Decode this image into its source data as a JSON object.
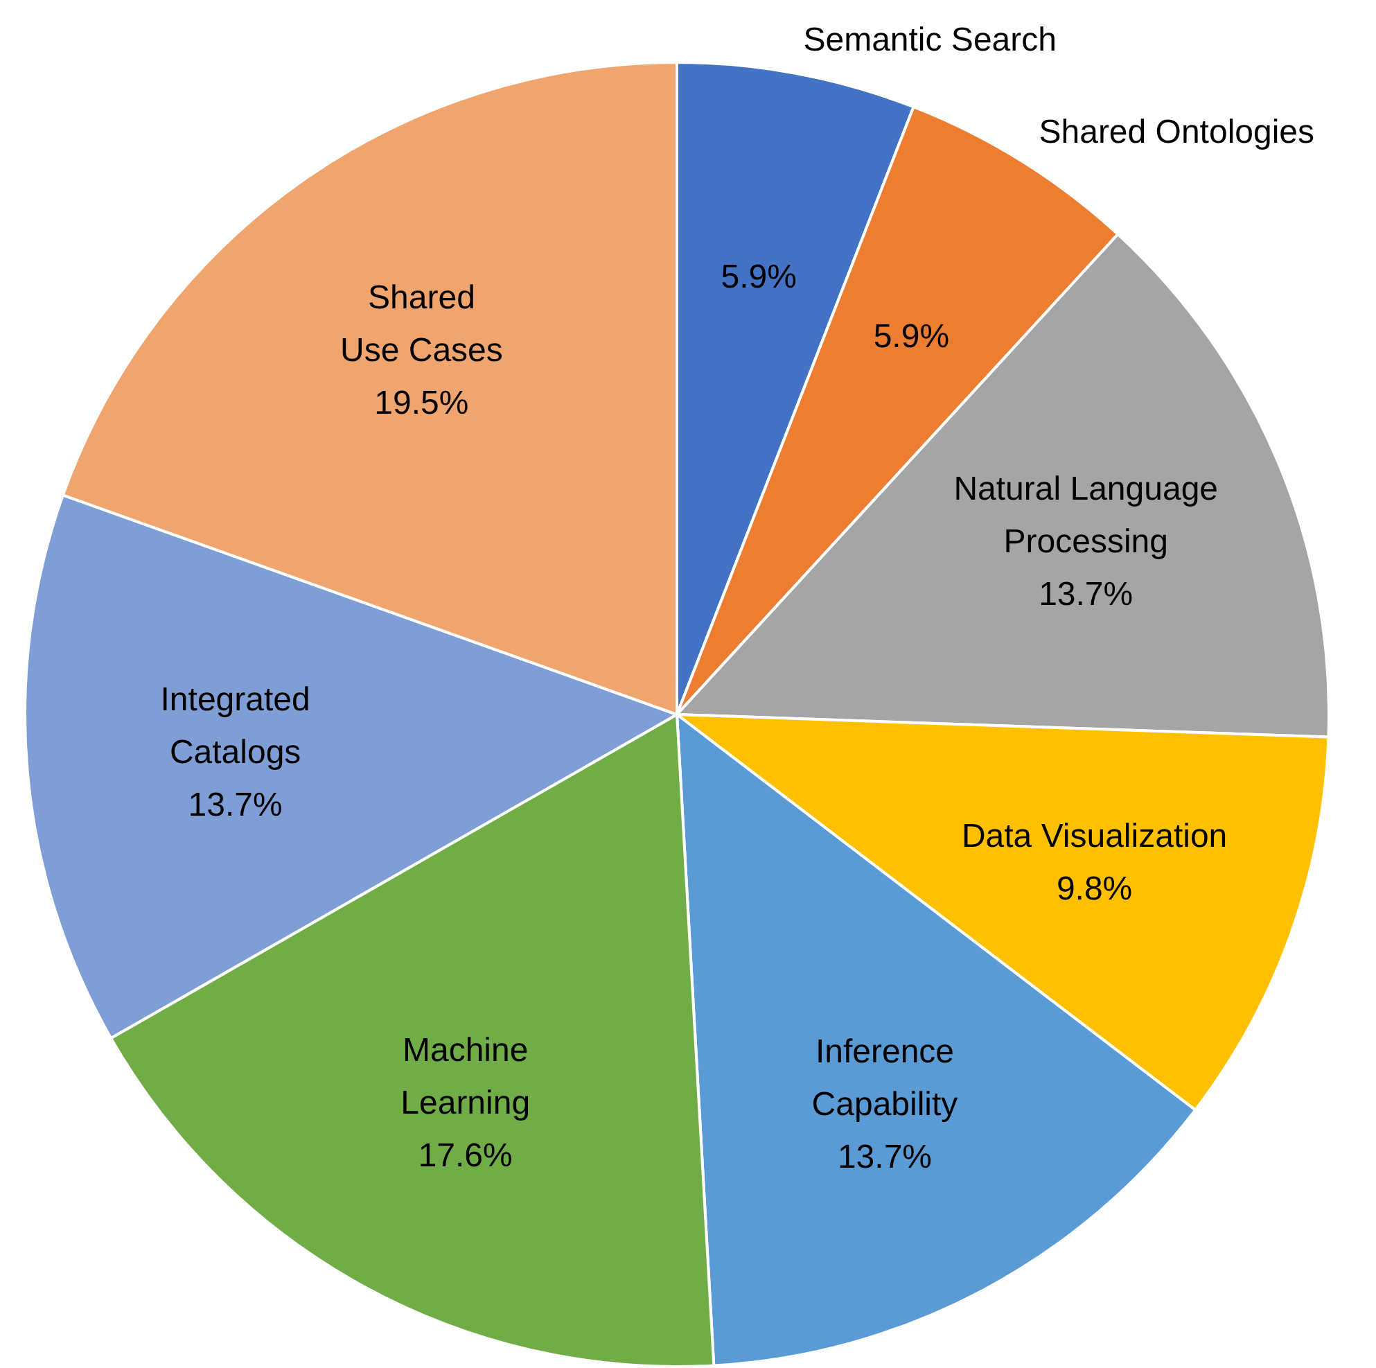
{
  "chart_data": {
    "type": "pie",
    "categories": [
      "Semantic Search",
      "Shared Ontologies",
      "Natural Language\nProcessing",
      "Data Visualization",
      "Inference\nCapability",
      "Machine\nLearning",
      "Integrated\nCatalogs",
      "Shared\nUse Cases"
    ],
    "values": [
      5.9,
      5.9,
      13.7,
      9.8,
      13.7,
      17.6,
      13.7,
      19.5
    ],
    "colors": [
      "#4472c4",
      "#ed7d31",
      "#a5a5a5",
      "#ffc000",
      "#5b9bd5",
      "#70ad47",
      "#7f9ed6",
      "#f0a46e"
    ],
    "value_labels": [
      "5.9%",
      "5.9%",
      "13.7%",
      "9.8%",
      "13.7%",
      "17.6%",
      "13.7%",
      "19.5%"
    ],
    "legend": false
  }
}
